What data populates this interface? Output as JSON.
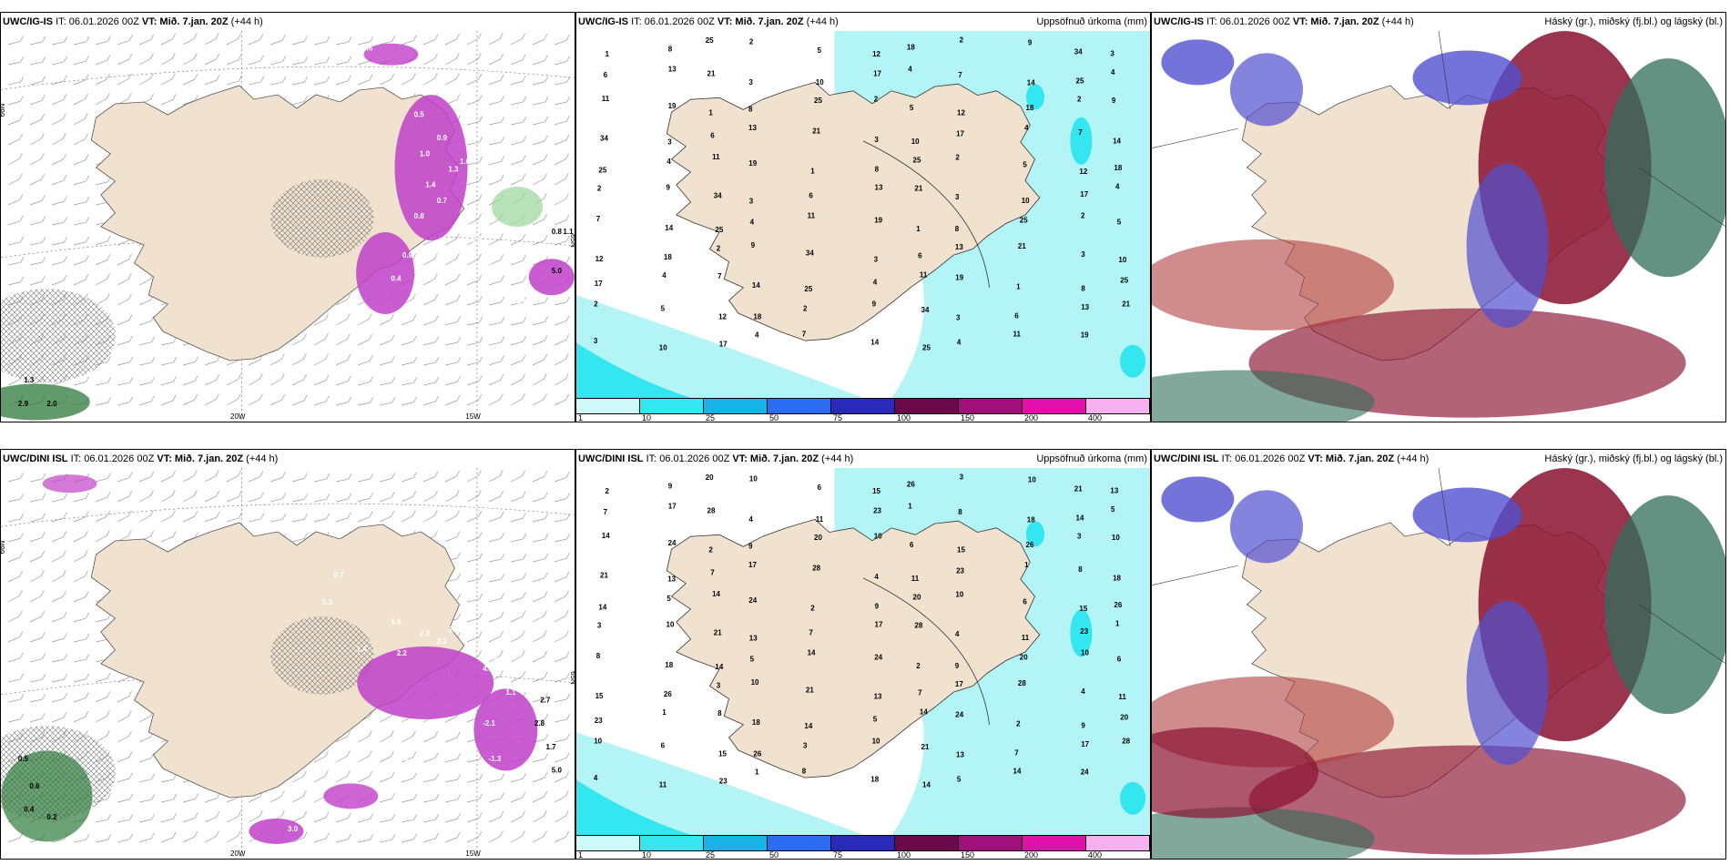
{
  "panels": [
    {
      "id": "p1",
      "model": "UWC/IG-IS",
      "it": "IT: 06.01.2026 00Z",
      "vt": "VT: Mið. 7.jan. 20Z",
      "lead": "(+44 h)",
      "right_title": "",
      "kind": "wind",
      "ticks": {
        "lon": [
          "20W",
          "15W"
        ],
        "lat": [
          "66N",
          "65N"
        ]
      },
      "labels": [
        "0.5",
        "0.9",
        "1.0",
        "1.3",
        "1.4",
        "1.6",
        "0.7",
        "0.8",
        "1.1",
        "1.5",
        "3.7",
        "0.4",
        "0.9",
        "1.9",
        "5.0",
        "0.5",
        "0.6",
        "0.8",
        "1.1",
        "2.9",
        "2.0",
        "1.3",
        "0.6"
      ]
    },
    {
      "id": "p2",
      "model": "UWC/IG-IS",
      "it": "IT: 06.01.2026 00Z",
      "vt": "VT: Mið. 7.jan. 20Z",
      "lead": "(+44 h)",
      "right_title": "Uppsöfnuð úrkoma (mm)",
      "kind": "precip",
      "labels": [
        "1",
        "2",
        "3",
        "4",
        "5",
        "6",
        "7",
        "8",
        "9",
        "10",
        "11",
        "12",
        "13",
        "14",
        "25",
        "34",
        "17",
        "19",
        "18",
        "21",
        "25",
        "2",
        "3",
        "4"
      ]
    },
    {
      "id": "p3",
      "model": "UWC/IG-IS",
      "it": "IT: 06.01.2026 00Z",
      "vt": "VT: Mið. 7.jan. 20Z",
      "lead": "(+44 h)",
      "right_title": "Háský (gr.), miðský (fj.bl.) og lágský (bl.)",
      "kind": "cloud"
    },
    {
      "id": "p4",
      "model": "UWC/DINI ISL",
      "it": "IT: 06.01.2026 00Z",
      "vt": "VT: Mið. 7.jan. 20Z",
      "lead": "(+44 h)",
      "right_title": "",
      "kind": "wind",
      "ticks": {
        "lon": [
          "20W",
          "15W"
        ],
        "lat": [
          "66N",
          "65N"
        ]
      },
      "labels": [
        "0.7",
        "0.3",
        "1.5",
        "1.4",
        "2.2",
        "2.3",
        "2.2",
        "3.2",
        "4.7",
        "4.8",
        "2.8",
        "1.1",
        "2.7",
        "2.8",
        "1.7",
        "5.0",
        "-2.1",
        "-1.3",
        "-1.3",
        "-1.2",
        "3.0",
        "2.3",
        "0.5",
        "0.6",
        "0.4",
        "0.2"
      ]
    },
    {
      "id": "p5",
      "model": "UWC/DINI ISL",
      "it": "IT: 06.01.2026 00Z",
      "vt": "VT: Mið. 7.jan. 20Z",
      "lead": "(+44 h)",
      "right_title": "Uppsöfnuð úrkoma (mm)",
      "kind": "precip",
      "labels": [
        "1",
        "2",
        "3",
        "4",
        "5",
        "6",
        "7",
        "8",
        "9",
        "10",
        "11",
        "14",
        "15",
        "17",
        "18",
        "20",
        "21",
        "23",
        "24",
        "26",
        "28",
        "14",
        "10",
        "13"
      ]
    },
    {
      "id": "p6",
      "model": "UWC/DINI ISL",
      "it": "IT: 06.01.2026 00Z",
      "vt": "VT: Mið. 7.jan. 20Z",
      "lead": "(+44 h)",
      "right_title": "Háský (gr.), miðský (fj.bl.) og lágský (bl.)",
      "kind": "cloud"
    }
  ],
  "colorbar": {
    "labels": [
      "1",
      "10",
      "25",
      "50",
      "75",
      "100",
      "150",
      "200",
      "400"
    ],
    "colors": [
      "#cffafa",
      "#33e6f0",
      "#19b4e6",
      "#2b6cf0",
      "#2a2ab8",
      "#6b0a4a",
      "#a0107a",
      "#e010a8",
      "#f5b0f0"
    ]
  },
  "colors": {
    "land": "#f1e1cf",
    "precip_light": "#b3f5f7",
    "precip_mid": "#33e6f0",
    "purple": "#c040c8",
    "deep_red": "#8a1030",
    "blue": "#5050d0",
    "green": "#2f6e5a"
  }
}
